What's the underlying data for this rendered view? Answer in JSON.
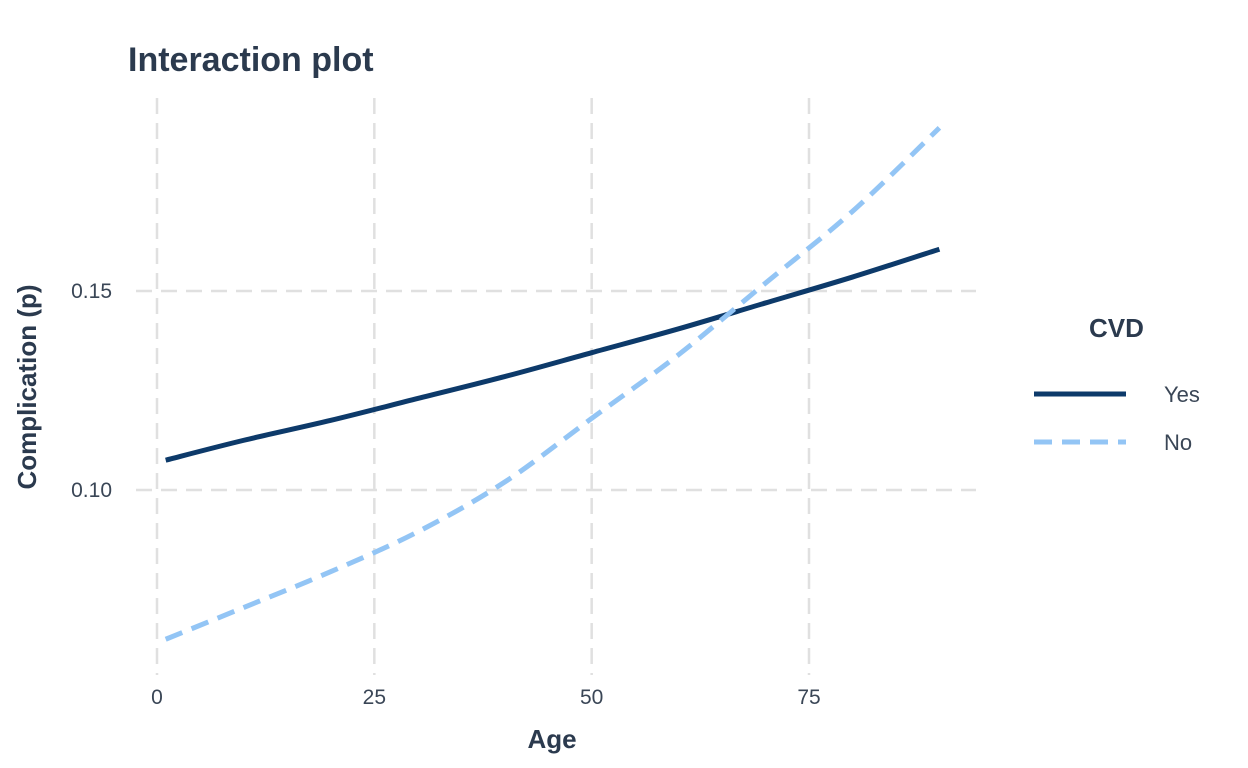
{
  "chart_data": {
    "type": "line",
    "title": "Interaction plot",
    "xlabel": "Age",
    "ylabel": "Complication (p)",
    "xlim": [
      0,
      94
    ],
    "ylim": [
      0.058,
      0.195
    ],
    "x_ticks": [
      0,
      25,
      50,
      75
    ],
    "x_tick_labels": [
      "0",
      "25",
      "50",
      "75"
    ],
    "y_ticks": [
      0.1,
      0.15
    ],
    "y_tick_labels": [
      "0.10",
      "0.15"
    ],
    "grid": true,
    "legend": {
      "title": "CVD",
      "placement": "right"
    },
    "series": [
      {
        "name": "Yes",
        "color": "#0d3a6a",
        "dash": "solid",
        "x": [
          1,
          10,
          20,
          30,
          40,
          50,
          60,
          70,
          80,
          90
        ],
        "y": [
          0.1075,
          0.1125,
          0.1175,
          0.123,
          0.1285,
          0.1345,
          0.1405,
          0.147,
          0.1535,
          0.1605
        ]
      },
      {
        "name": "No",
        "color": "#93c5f5",
        "dash": "dashed",
        "x": [
          1,
          10,
          20,
          30,
          40,
          50,
          60,
          70,
          80,
          90
        ],
        "y": [
          0.0625,
          0.0705,
          0.0795,
          0.0895,
          0.102,
          0.118,
          0.134,
          0.152,
          0.17,
          0.191
        ]
      }
    ]
  }
}
